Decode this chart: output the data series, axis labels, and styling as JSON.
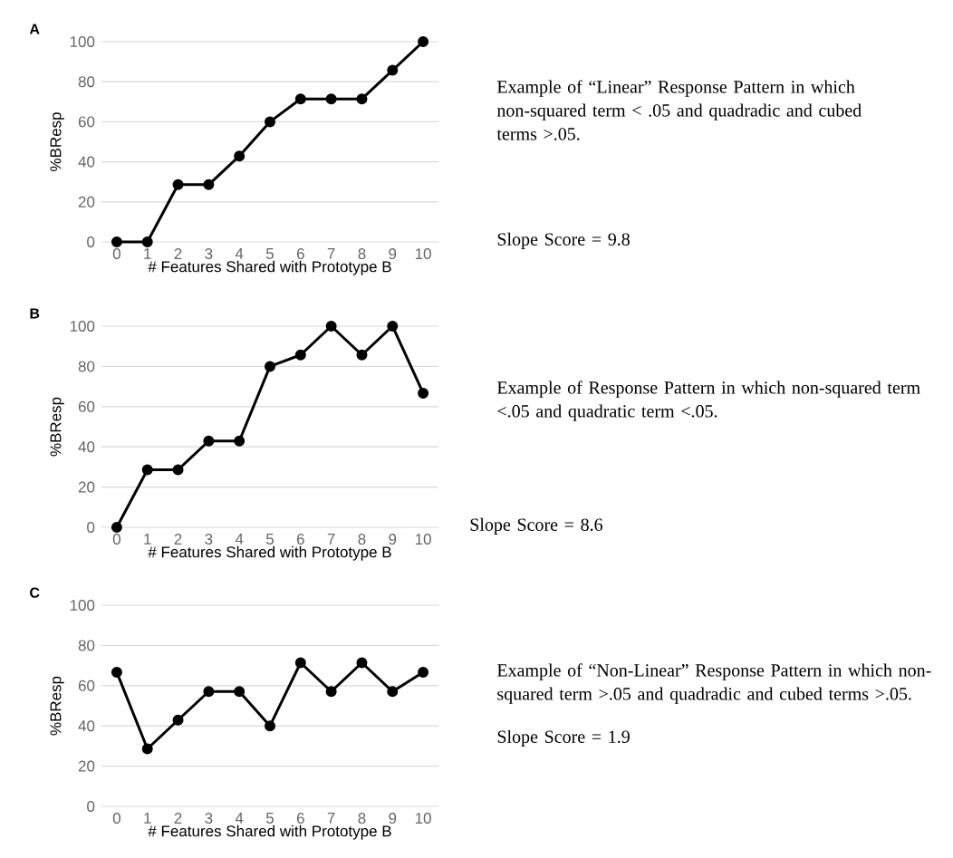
{
  "chart_data": [
    {
      "type": "line",
      "title": "A",
      "xlabel": "# Features Shared with Prototype B",
      "ylabel": "%BResp",
      "categories": [
        "0",
        "1",
        "2",
        "3",
        "4",
        "5",
        "6",
        "7",
        "8",
        "9",
        "10"
      ],
      "series": [
        {
          "color": "#000000",
          "values": [
            0,
            0,
            28.6,
            28.6,
            42.9,
            60,
            71.4,
            71.4,
            71.4,
            85.7,
            100
          ]
        }
      ],
      "ylim": [
        0,
        100
      ],
      "yticks": [
        0,
        20,
        40,
        60,
        80,
        100
      ],
      "grid": "y",
      "marker": "circle",
      "line_style": "solid",
      "annotations": [
        "Example of “Linear” Response Pattern in which non-squared term < .05 and quadradic and cubed terms >.05.",
        "Slope Score = 9.8"
      ]
    },
    {
      "type": "line",
      "title": "B",
      "xlabel": "# Features Shared with Prototype B",
      "ylabel": "%BResp",
      "categories": [
        "0",
        "1",
        "2",
        "3",
        "4",
        "5",
        "6",
        "7",
        "8",
        "9",
        "10"
      ],
      "series": [
        {
          "color": "#000000",
          "values": [
            0,
            28.6,
            28.6,
            42.9,
            42.9,
            80,
            85.7,
            100,
            85.7,
            100,
            66.7
          ]
        }
      ],
      "ylim": [
        0,
        100
      ],
      "yticks": [
        0,
        20,
        40,
        60,
        80,
        100
      ],
      "grid": "y",
      "marker": "circle",
      "line_style": "solid",
      "annotations": [
        "Example of Response Pattern in which non-squared term <.05 and quadratic term <.05.",
        "Slope Score = 8.6"
      ]
    },
    {
      "type": "line",
      "title": "C",
      "xlabel": "# Features Shared with Prototype B",
      "ylabel": "%BResp",
      "categories": [
        "0",
        "1",
        "2",
        "3",
        "4",
        "5",
        "6",
        "7",
        "8",
        "9",
        "10"
      ],
      "series": [
        {
          "color": "#000000",
          "values": [
            66.7,
            28.6,
            42.9,
            57.1,
            57.1,
            40,
            71.4,
            57.1,
            71.4,
            57.1,
            66.7
          ]
        }
      ],
      "ylim": [
        0,
        100
      ],
      "yticks": [
        0,
        20,
        40,
        60,
        80,
        100
      ],
      "grid": "y",
      "marker": "circle",
      "line_style": "solid",
      "annotations": [
        "Example of “Non-Linear” Response Pattern in which non-squared term >.05 and quadradic and cubed terms >.05.",
        "Slope Score = 1.9"
      ]
    }
  ]
}
